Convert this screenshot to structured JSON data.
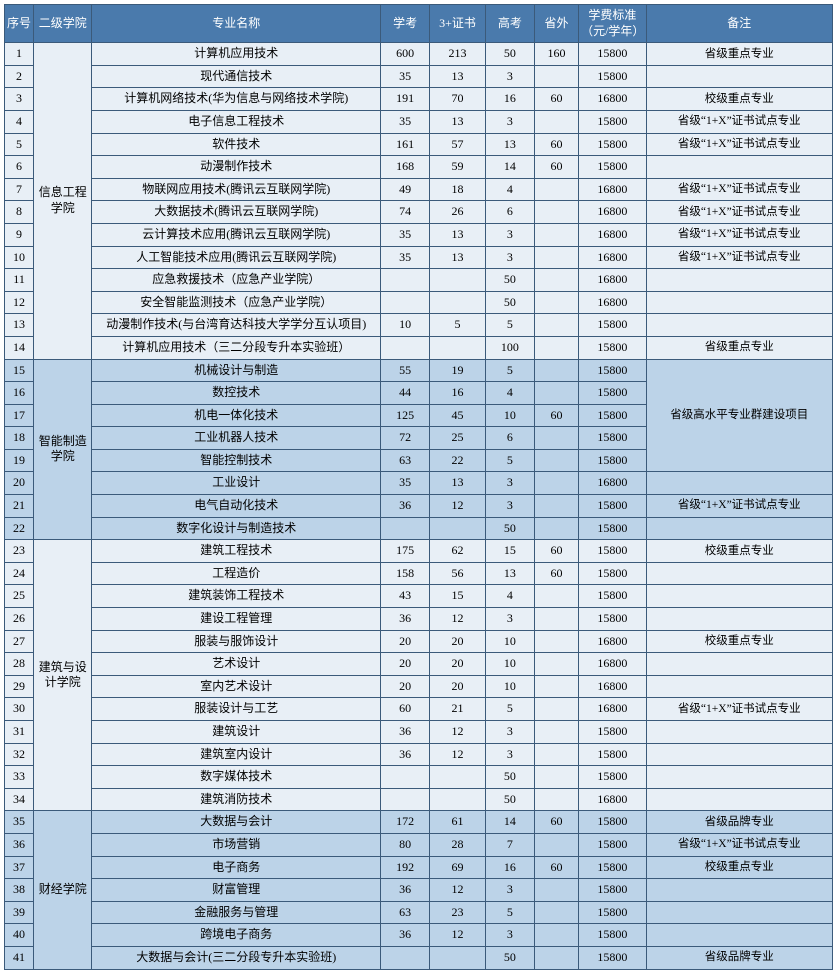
{
  "colors": {
    "header_bg": "#4a7aac",
    "header_fg": "#ffffff",
    "border": "#3b5a7a",
    "group_light": "#e8eff6",
    "group_dark": "#bcd3e8"
  },
  "headers": {
    "seq": "序号",
    "dept": "二级学院",
    "major": "专业名称",
    "xuekao": "学考",
    "cert": "3+证书",
    "gaokao": "高考",
    "shengwai": "省外",
    "fee": "学费标准（元/学年）",
    "note": "备注"
  },
  "groups": [
    {
      "dept": "信息工程学院",
      "dept_lines": [
        "信息工程",
        "学院"
      ],
      "rows": [
        {
          "seq": 1,
          "major": "计算机应用技术",
          "xk": "600",
          "cert": "213",
          "gk": "50",
          "sw": "160",
          "fee": "15800",
          "note": "省级重点专业"
        },
        {
          "seq": 2,
          "major": "现代通信技术",
          "xk": "35",
          "cert": "13",
          "gk": "3",
          "sw": "",
          "fee": "15800",
          "note": ""
        },
        {
          "seq": 3,
          "major": "计算机网络技术(华为信息与网络技术学院)",
          "xk": "191",
          "cert": "70",
          "gk": "16",
          "sw": "60",
          "fee": "16800",
          "note": "校级重点专业"
        },
        {
          "seq": 4,
          "major": "电子信息工程技术",
          "xk": "35",
          "cert": "13",
          "gk": "3",
          "sw": "",
          "fee": "15800",
          "note": "省级“1+X”证书试点专业"
        },
        {
          "seq": 5,
          "major": "软件技术",
          "xk": "161",
          "cert": "57",
          "gk": "13",
          "sw": "60",
          "fee": "15800",
          "note": "省级“1+X”证书试点专业"
        },
        {
          "seq": 6,
          "major": "动漫制作技术",
          "xk": "168",
          "cert": "59",
          "gk": "14",
          "sw": "60",
          "fee": "15800",
          "note": ""
        },
        {
          "seq": 7,
          "major": "物联网应用技术(腾讯云互联网学院)",
          "xk": "49",
          "cert": "18",
          "gk": "4",
          "sw": "",
          "fee": "16800",
          "note": "省级“1+X”证书试点专业"
        },
        {
          "seq": 8,
          "major": "大数据技术(腾讯云互联网学院)",
          "xk": "74",
          "cert": "26",
          "gk": "6",
          "sw": "",
          "fee": "16800",
          "note": "省级“1+X”证书试点专业"
        },
        {
          "seq": 9,
          "major": "云计算技术应用(腾讯云互联网学院)",
          "xk": "35",
          "cert": "13",
          "gk": "3",
          "sw": "",
          "fee": "16800",
          "note": "省级“1+X”证书试点专业"
        },
        {
          "seq": 10,
          "major": "人工智能技术应用(腾讯云互联网学院)",
          "xk": "35",
          "cert": "13",
          "gk": "3",
          "sw": "",
          "fee": "16800",
          "note": "省级“1+X”证书试点专业"
        },
        {
          "seq": 11,
          "major": "应急救援技术（应急产业学院）",
          "xk": "",
          "cert": "",
          "gk": "50",
          "sw": "",
          "fee": "16800",
          "note": ""
        },
        {
          "seq": 12,
          "major": "安全智能监测技术（应急产业学院）",
          "xk": "",
          "cert": "",
          "gk": "50",
          "sw": "",
          "fee": "16800",
          "note": ""
        },
        {
          "seq": 13,
          "major": "动漫制作技术(与台湾育达科技大学学分互认项目)",
          "xk": "10",
          "cert": "5",
          "gk": "5",
          "sw": "",
          "fee": "15800",
          "note": ""
        },
        {
          "seq": 14,
          "major": "计算机应用技术（三二分段专升本实验班）",
          "xk": "",
          "cert": "",
          "gk": "100",
          "sw": "",
          "fee": "15800",
          "note": "省级重点专业"
        }
      ]
    },
    {
      "dept": "智能制造学院",
      "dept_lines": [
        "智能制造",
        "学院"
      ],
      "note_merge": {
        "text": "省级高水平专业群建设项目",
        "span": 5
      },
      "rows": [
        {
          "seq": 15,
          "major": "机械设计与制造",
          "xk": "55",
          "cert": "19",
          "gk": "5",
          "sw": "",
          "fee": "15800",
          "merge": true
        },
        {
          "seq": 16,
          "major": "数控技术",
          "xk": "44",
          "cert": "16",
          "gk": "4",
          "sw": "",
          "fee": "15800",
          "merge": true
        },
        {
          "seq": 17,
          "major": "机电一体化技术",
          "xk": "125",
          "cert": "45",
          "gk": "10",
          "sw": "60",
          "fee": "15800",
          "merge": true
        },
        {
          "seq": 18,
          "major": "工业机器人技术",
          "xk": "72",
          "cert": "25",
          "gk": "6",
          "sw": "",
          "fee": "15800",
          "merge": true
        },
        {
          "seq": 19,
          "major": "智能控制技术",
          "xk": "63",
          "cert": "22",
          "gk": "5",
          "sw": "",
          "fee": "15800",
          "merge": true
        },
        {
          "seq": 20,
          "major": "工业设计",
          "xk": "35",
          "cert": "13",
          "gk": "3",
          "sw": "",
          "fee": "16800",
          "note": ""
        },
        {
          "seq": 21,
          "major": "电气自动化技术",
          "xk": "36",
          "cert": "12",
          "gk": "3",
          "sw": "",
          "fee": "15800",
          "note": "省级“1+X”证书试点专业"
        },
        {
          "seq": 22,
          "major": "数字化设计与制造技术",
          "xk": "",
          "cert": "",
          "gk": "50",
          "sw": "",
          "fee": "15800",
          "note": ""
        }
      ]
    },
    {
      "dept": "建筑与设计学院",
      "dept_lines": [
        "建筑与设",
        "计学院"
      ],
      "rows": [
        {
          "seq": 23,
          "major": "建筑工程技术",
          "xk": "175",
          "cert": "62",
          "gk": "15",
          "sw": "60",
          "fee": "15800",
          "note": "校级重点专业"
        },
        {
          "seq": 24,
          "major": "工程造价",
          "xk": "158",
          "cert": "56",
          "gk": "13",
          "sw": "60",
          "fee": "15800",
          "note": ""
        },
        {
          "seq": 25,
          "major": "建筑装饰工程技术",
          "xk": "43",
          "cert": "15",
          "gk": "4",
          "sw": "",
          "fee": "15800",
          "note": ""
        },
        {
          "seq": 26,
          "major": "建设工程管理",
          "xk": "36",
          "cert": "12",
          "gk": "3",
          "sw": "",
          "fee": "15800",
          "note": ""
        },
        {
          "seq": 27,
          "major": "服装与服饰设计",
          "xk": "20",
          "cert": "20",
          "gk": "10",
          "sw": "",
          "fee": "16800",
          "note": "校级重点专业"
        },
        {
          "seq": 28,
          "major": "艺术设计",
          "xk": "20",
          "cert": "20",
          "gk": "10",
          "sw": "",
          "fee": "16800",
          "note": ""
        },
        {
          "seq": 29,
          "major": "室内艺术设计",
          "xk": "20",
          "cert": "20",
          "gk": "10",
          "sw": "",
          "fee": "16800",
          "note": ""
        },
        {
          "seq": 30,
          "major": "服装设计与工艺",
          "xk": "60",
          "cert": "21",
          "gk": "5",
          "sw": "",
          "fee": "16800",
          "note": "省级“1+X”证书试点专业"
        },
        {
          "seq": 31,
          "major": "建筑设计",
          "xk": "36",
          "cert": "12",
          "gk": "3",
          "sw": "",
          "fee": "15800",
          "note": ""
        },
        {
          "seq": 32,
          "major": "建筑室内设计",
          "xk": "36",
          "cert": "12",
          "gk": "3",
          "sw": "",
          "fee": "15800",
          "note": ""
        },
        {
          "seq": 33,
          "major": "数字媒体技术",
          "xk": "",
          "cert": "",
          "gk": "50",
          "sw": "",
          "fee": "15800",
          "note": ""
        },
        {
          "seq": 34,
          "major": "建筑消防技术",
          "xk": "",
          "cert": "",
          "gk": "50",
          "sw": "",
          "fee": "16800",
          "note": ""
        }
      ]
    },
    {
      "dept": "财经学院",
      "dept_lines": [
        "财经学院"
      ],
      "rows": [
        {
          "seq": 35,
          "major": "大数据与会计",
          "xk": "172",
          "cert": "61",
          "gk": "14",
          "sw": "60",
          "fee": "15800",
          "note": "省级品牌专业"
        },
        {
          "seq": 36,
          "major": "市场营销",
          "xk": "80",
          "cert": "28",
          "gk": "7",
          "sw": "",
          "fee": "15800",
          "note": "省级“1+X”证书试点专业"
        },
        {
          "seq": 37,
          "major": "电子商务",
          "xk": "192",
          "cert": "69",
          "gk": "16",
          "sw": "60",
          "fee": "15800",
          "note": "校级重点专业"
        },
        {
          "seq": 38,
          "major": "财富管理",
          "xk": "36",
          "cert": "12",
          "gk": "3",
          "sw": "",
          "fee": "15800",
          "note": ""
        },
        {
          "seq": 39,
          "major": "金融服务与管理",
          "xk": "63",
          "cert": "23",
          "gk": "5",
          "sw": "",
          "fee": "15800",
          "note": ""
        },
        {
          "seq": 40,
          "major": "跨境电子商务",
          "xk": "36",
          "cert": "12",
          "gk": "3",
          "sw": "",
          "fee": "15800",
          "note": ""
        },
        {
          "seq": 41,
          "major": "大数据与会计(三二分段专升本实验班)",
          "xk": "",
          "cert": "",
          "gk": "50",
          "sw": "",
          "fee": "15800",
          "note": "省级品牌专业"
        }
      ]
    }
  ]
}
